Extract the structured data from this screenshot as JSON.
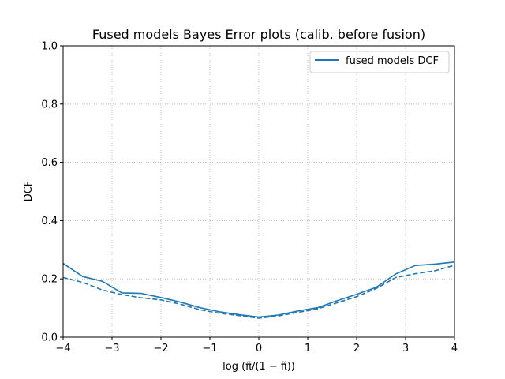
{
  "chart_data": {
    "type": "line",
    "title": "Fused models Bayes Error plots (calib. before fusion)",
    "xlabel": "log (π̃/(1 − π̃))",
    "ylabel": "DCF",
    "xlim": [
      -4,
      4
    ],
    "ylim": [
      0,
      1
    ],
    "xticks": [
      -4,
      -3,
      -2,
      -1,
      0,
      1,
      2,
      3,
      4
    ],
    "xtick_labels": [
      "−4",
      "−3",
      "−2",
      "−1",
      "0",
      "1",
      "2",
      "3",
      "4"
    ],
    "yticks": [
      0.0,
      0.2,
      0.4,
      0.6,
      0.8,
      1.0
    ],
    "ytick_labels": [
      "0.0",
      "0.2",
      "0.4",
      "0.6",
      "0.8",
      "1.0"
    ],
    "grid": true,
    "legend_position": "top-right",
    "color": "#1f77b4",
    "x": [
      -4.0,
      -3.6,
      -3.2,
      -2.8,
      -2.4,
      -2.0,
      -1.6,
      -1.2,
      -0.8,
      -0.4,
      0.0,
      0.4,
      0.8,
      1.2,
      1.6,
      2.0,
      2.4,
      2.8,
      3.2,
      3.6,
      4.0
    ],
    "series": [
      {
        "name": "fused models DCF",
        "style": "solid",
        "values": [
          0.253,
          0.208,
          0.192,
          0.152,
          0.15,
          0.136,
          0.12,
          0.101,
          0.087,
          0.077,
          0.069,
          0.076,
          0.09,
          0.101,
          0.125,
          0.147,
          0.171,
          0.217,
          0.246,
          0.251,
          0.258
        ]
      },
      {
        "style": "dashed",
        "values": [
          0.205,
          0.188,
          0.162,
          0.146,
          0.135,
          0.128,
          0.113,
          0.094,
          0.082,
          0.074,
          0.065,
          0.073,
          0.085,
          0.097,
          0.118,
          0.139,
          0.167,
          0.205,
          0.218,
          0.228,
          0.247
        ]
      }
    ]
  }
}
